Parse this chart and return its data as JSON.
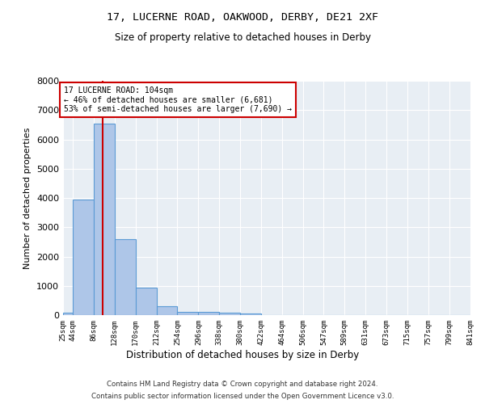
{
  "title": "17, LUCERNE ROAD, OAKWOOD, DERBY, DE21 2XF",
  "subtitle": "Size of property relative to detached houses in Derby",
  "xlabel": "Distribution of detached houses by size in Derby",
  "ylabel": "Number of detached properties",
  "footer_line1": "Contains HM Land Registry data © Crown copyright and database right 2024.",
  "footer_line2": "Contains public sector information licensed under the Open Government Licence v3.0.",
  "bin_edges": [
    25,
    44,
    86,
    128,
    170,
    212,
    254,
    296,
    338,
    380,
    422,
    464,
    506,
    547,
    589,
    631,
    673,
    715,
    757,
    799,
    841
  ],
  "bar_heights": [
    75,
    3950,
    6550,
    2600,
    950,
    300,
    120,
    110,
    90,
    65,
    0,
    0,
    0,
    0,
    0,
    0,
    0,
    0,
    0,
    0
  ],
  "bar_color": "#aec6e8",
  "bar_edge_color": "#5b9bd5",
  "background_color": "#e8eef4",
  "grid_color": "#ffffff",
  "red_line_x": 104,
  "annotation_text_line1": "17 LUCERNE ROAD: 104sqm",
  "annotation_text_line2": "← 46% of detached houses are smaller (6,681)",
  "annotation_text_line3": "53% of semi-detached houses are larger (7,690) →",
  "annotation_box_color": "#ffffff",
  "annotation_border_color": "#cc0000",
  "ylim": [
    0,
    8000
  ],
  "yticks": [
    0,
    1000,
    2000,
    3000,
    4000,
    5000,
    6000,
    7000,
    8000
  ]
}
